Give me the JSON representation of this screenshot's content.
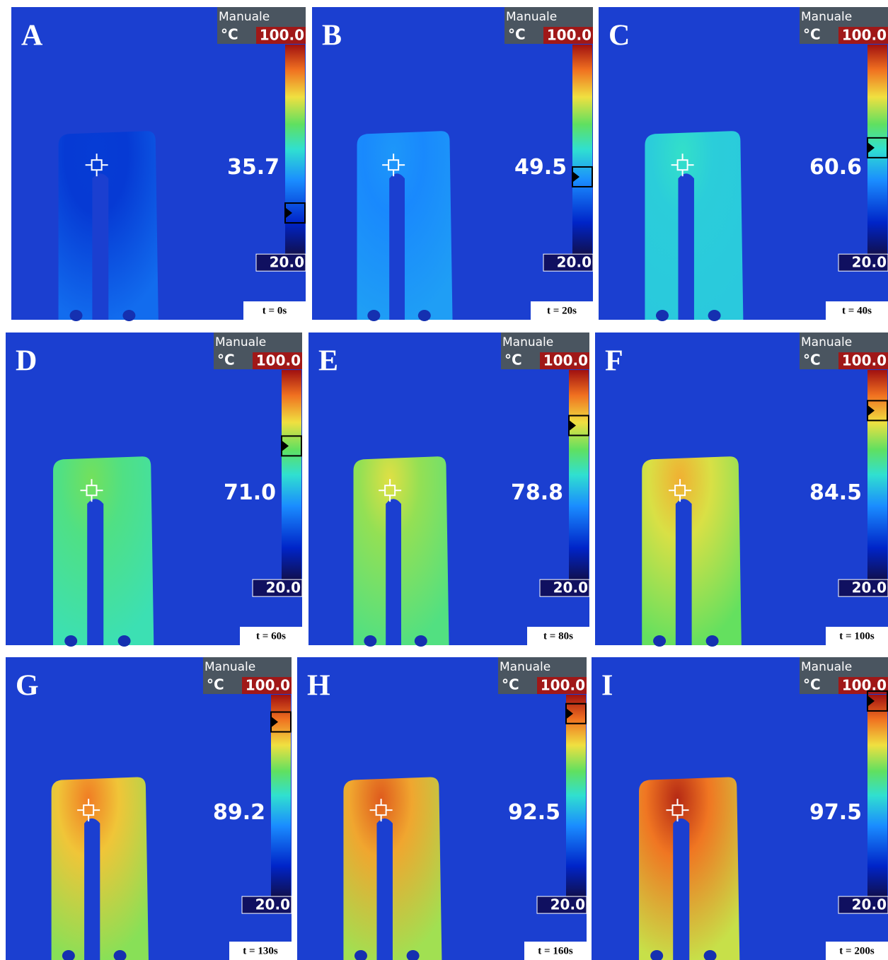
{
  "panels": [
    {
      "letter": "A",
      "mode": "Manuale",
      "unit": "°C",
      "max": "100.0",
      "min": "20.0",
      "reading": "35.7",
      "time": "t = 0s"
    },
    {
      "letter": "B",
      "mode": "Manuale",
      "unit": "°C",
      "max": "100.0",
      "min": "20.0",
      "reading": "49.5",
      "time": "t = 20s"
    },
    {
      "letter": "C",
      "mode": "Manuale",
      "unit": "°C",
      "max": "100.0",
      "min": "20.0",
      "reading": "60.6",
      "time": "t = 40s"
    },
    {
      "letter": "D",
      "mode": "Manuale",
      "unit": "°C",
      "max": "100.0",
      "min": "20.0",
      "reading": "71.0",
      "time": "t = 60s"
    },
    {
      "letter": "E",
      "mode": "Manuale",
      "unit": "°C",
      "max": "100.0",
      "min": "20.0",
      "reading": "78.8",
      "time": "t = 80s"
    },
    {
      "letter": "F",
      "mode": "Manuale",
      "unit": "°C",
      "max": "100.0",
      "min": "20.0",
      "reading": "84.5",
      "time": "t = 100s"
    },
    {
      "letter": "G",
      "mode": "Manuale",
      "unit": "°C",
      "max": "100.0",
      "min": "20.0",
      "reading": "89.2",
      "time": "t = 130s"
    },
    {
      "letter": "H",
      "mode": "Manuale",
      "unit": "°C",
      "max": "100.0",
      "min": "20.0",
      "reading": "92.5",
      "time": "t = 160s"
    },
    {
      "letter": "I",
      "mode": "Manuale",
      "unit": "°C",
      "max": "100.0",
      "min": "20.0",
      "reading": "97.5",
      "time": "t = 200s"
    }
  ]
}
